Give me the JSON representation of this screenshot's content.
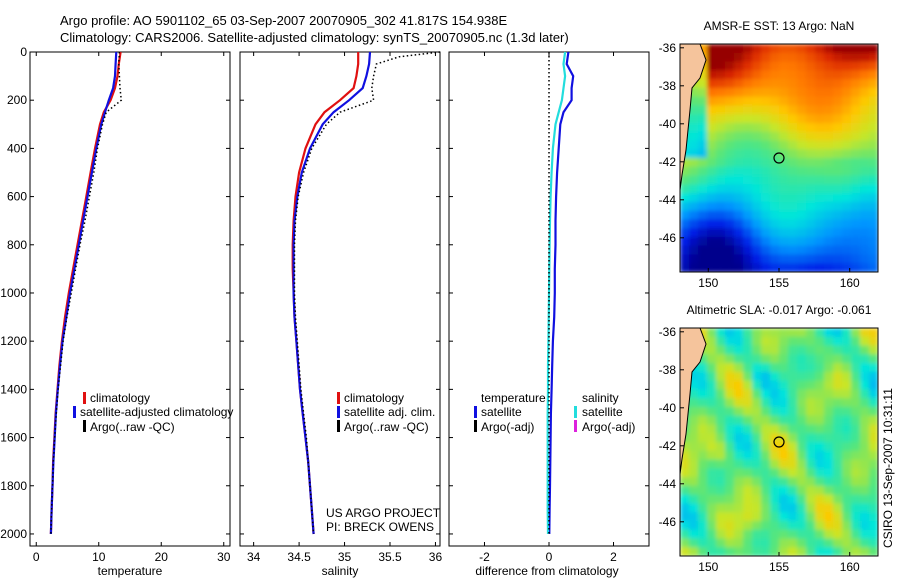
{
  "header": {
    "line1": "Argo profile: AO 5901102_65 03-Sep-2007 20070905_302 41.817S 154.938E",
    "line2": "Climatology: CARS2006. Satellite-adjusted climatology: synTS_20070905.nc (1.3d later)"
  },
  "side_label": "CSIRO 13-Sep-2007 10:31:11",
  "colors": {
    "climatology": "#e01010",
    "satellite": "#1010e0",
    "argo": "#000000",
    "cyan": "#22dddd",
    "magenta": "#dd22dd",
    "land": "#f5c49c"
  },
  "chart_data": [
    {
      "type": "line",
      "id": "temperature",
      "xlabel": "temperature",
      "xlim": [
        -1,
        31
      ],
      "ylim": [
        2050,
        0
      ],
      "xticks": [
        0,
        10,
        20,
        30
      ],
      "yticks": [
        0,
        200,
        400,
        600,
        800,
        1000,
        1200,
        1400,
        1600,
        1800,
        2000
      ],
      "series": [
        {
          "name": "climatology",
          "color": "#e01010",
          "style": "solid",
          "pressure": [
            0,
            50,
            100,
            150,
            200,
            250,
            300,
            400,
            500,
            600,
            700,
            800,
            900,
            1000,
            1100,
            1200,
            1300,
            1400,
            1500,
            1600,
            1700,
            1800,
            1900,
            2000
          ],
          "values": [
            13.5,
            13.2,
            13.0,
            12.6,
            11.9,
            10.8,
            10.2,
            9.4,
            8.7,
            8.0,
            7.3,
            6.6,
            5.9,
            5.2,
            4.6,
            4.1,
            3.7,
            3.4,
            3.1,
            2.9,
            2.7,
            2.6,
            2.45,
            2.35
          ]
        },
        {
          "name": "satellite-adjusted climatology",
          "color": "#1010e0",
          "style": "solid",
          "pressure": [
            0,
            50,
            100,
            150,
            200,
            250,
            300,
            400,
            500,
            600,
            700,
            800,
            900,
            1000,
            1100,
            1200,
            1300,
            1400,
            1500,
            1600,
            1700,
            1800,
            1900,
            2000
          ],
          "values": [
            12.8,
            12.7,
            12.6,
            12.3,
            11.6,
            11.0,
            10.4,
            9.6,
            8.9,
            8.2,
            7.5,
            6.8,
            6.1,
            5.4,
            4.8,
            4.2,
            3.8,
            3.45,
            3.15,
            2.95,
            2.75,
            2.6,
            2.45,
            2.35
          ]
        },
        {
          "name": "Argo(..raw -QC)",
          "color": "#000000",
          "style": "dotted",
          "pressure": [
            0,
            50,
            100,
            150,
            200,
            250,
            300,
            400,
            500,
            600,
            700,
            800,
            900,
            1000,
            1100,
            1200,
            1300,
            1400,
            1500,
            1600,
            1700,
            1800,
            1900,
            2000
          ],
          "values": [
            13.3,
            13.2,
            13.3,
            13.4,
            13.6,
            11.2,
            10.6,
            9.8,
            9.2,
            8.5,
            7.8,
            7.0,
            6.3,
            5.6,
            4.9,
            4.3,
            3.9,
            3.5,
            3.2,
            2.95,
            2.75,
            2.6,
            2.45,
            2.35
          ]
        }
      ],
      "legend": [
        "climatology",
        "satellite-adjusted climatology",
        "Argo(..raw -QC)"
      ]
    },
    {
      "type": "line",
      "id": "salinity",
      "xlabel": "salinity",
      "xlim": [
        33.85,
        36.05
      ],
      "ylim": [
        2050,
        0
      ],
      "xticks": [
        34,
        34.5,
        35,
        35.5,
        36
      ],
      "series": [
        {
          "name": "climatology",
          "color": "#e01010",
          "style": "solid",
          "pressure": [
            0,
            50,
            100,
            150,
            200,
            250,
            300,
            400,
            500,
            600,
            700,
            800,
            900,
            1000,
            1100,
            1200,
            1300,
            1400,
            1500,
            1600,
            1700,
            1800,
            1900,
            2000
          ],
          "values": [
            35.15,
            35.15,
            35.13,
            35.1,
            34.95,
            34.78,
            34.68,
            34.57,
            34.5,
            34.46,
            34.44,
            34.43,
            34.43,
            34.44,
            34.45,
            34.47,
            34.49,
            34.51,
            34.54,
            34.57,
            34.6,
            34.62,
            34.64,
            34.66
          ]
        },
        {
          "name": "satellite adj. clim.",
          "color": "#1010e0",
          "style": "solid",
          "pressure": [
            0,
            50,
            100,
            150,
            200,
            250,
            300,
            400,
            500,
            600,
            700,
            800,
            900,
            1000,
            1100,
            1200,
            1300,
            1400,
            1500,
            1600,
            1700,
            1800,
            1900,
            2000
          ],
          "values": [
            35.28,
            35.27,
            35.24,
            35.2,
            35.05,
            34.88,
            34.76,
            34.62,
            34.53,
            34.48,
            34.45,
            34.44,
            34.44,
            34.44,
            34.45,
            34.47,
            34.49,
            34.51,
            34.54,
            34.57,
            34.6,
            34.62,
            34.64,
            34.66
          ]
        },
        {
          "name": "Argo(..raw -QC)",
          "color": "#000000",
          "style": "dotted",
          "pressure": [
            0,
            20,
            50,
            100,
            150,
            200,
            250,
            300,
            400,
            500,
            600,
            700,
            800,
            900,
            1000,
            1100,
            1200,
            1300,
            1400,
            1500,
            1600,
            1700,
            1800,
            1900,
            2000
          ],
          "values": [
            36.05,
            35.6,
            35.35,
            35.32,
            35.3,
            35.32,
            34.95,
            34.8,
            34.64,
            34.55,
            34.49,
            34.46,
            34.45,
            34.45,
            34.45,
            34.46,
            34.48,
            34.5,
            34.52,
            34.55,
            34.58,
            34.6,
            34.62,
            34.64,
            34.66
          ]
        }
      ],
      "legend": [
        "climatology",
        "satellite adj. clim.",
        "Argo(..raw -QC)"
      ],
      "annotation": [
        "US ARGO PROJECT",
        "PI: BRECK OWENS"
      ]
    },
    {
      "type": "line",
      "id": "difference",
      "xlabel": "difference from climatology",
      "xlim": [
        -3.1,
        3.1
      ],
      "ylim": [
        2050,
        0
      ],
      "xticks": [
        -2,
        0,
        2
      ],
      "series": [
        {
          "name": "temperature satellite",
          "color": "#1010e0",
          "style": "solid",
          "pressure": [
            0,
            50,
            100,
            150,
            200,
            250,
            300,
            400,
            500,
            600,
            700,
            800,
            900,
            1000,
            1100,
            1200,
            1300,
            1400,
            1500,
            1600,
            1700,
            1800,
            1900,
            2000
          ],
          "values": [
            0.6,
            0.55,
            0.75,
            0.7,
            0.7,
            0.45,
            0.35,
            0.3,
            0.25,
            0.22,
            0.2,
            0.2,
            0.18,
            0.18,
            0.16,
            0.12,
            0.1,
            0.08,
            0.06,
            0.05,
            0.04,
            0.03,
            0.02,
            0.01
          ]
        },
        {
          "name": "salinity satellite",
          "color": "#22dddd",
          "style": "solid",
          "pressure": [
            0,
            50,
            100,
            150,
            200,
            250,
            300,
            400,
            500,
            600,
            700,
            800,
            900,
            1000,
            1100,
            1200,
            1300,
            1400,
            1500,
            1600,
            1700,
            1800,
            1900,
            2000
          ],
          "values": [
            0.5,
            0.45,
            0.5,
            0.45,
            0.4,
            0.3,
            0.2,
            0.12,
            0.08,
            0.05,
            0.03,
            0.02,
            0.01,
            0.0,
            -0.01,
            -0.02,
            -0.03,
            -0.03,
            -0.04,
            -0.04,
            -0.04,
            -0.04,
            -0.04,
            -0.03
          ]
        },
        {
          "name": "zero line",
          "color": "#000000",
          "style": "dotted",
          "pressure": [
            0,
            2000
          ],
          "values": [
            0,
            0
          ]
        }
      ],
      "legend_left": {
        "header": "temperature",
        "items": [
          "satellite",
          "Argo(-adj)"
        ]
      },
      "legend_right": {
        "header": "salinity",
        "items": [
          "satellite",
          "Argo(-adj)"
        ]
      }
    }
  ],
  "maps": {
    "sst": {
      "title": "AMSR-E SST: 13 Argo: NaN",
      "yticks": [
        -36,
        -38,
        -40,
        -42,
        -44,
        -46
      ],
      "xticks": [
        150,
        155,
        160
      ],
      "lon_range": [
        148,
        162
      ],
      "lat_range": [
        -47.8,
        -35.8
      ],
      "marker": {
        "lon": 155,
        "lat": -41.8
      }
    },
    "sla": {
      "title": "Altimetric SLA: -0.017 Argo: -0.061",
      "yticks": [
        -36,
        -38,
        -40,
        -42,
        -44,
        -46
      ],
      "xticks": [
        150,
        155,
        160
      ],
      "lon_range": [
        148,
        162
      ],
      "lat_range": [
        -47.8,
        -35.8
      ],
      "marker": {
        "lon": 155,
        "lat": -41.8
      }
    }
  }
}
